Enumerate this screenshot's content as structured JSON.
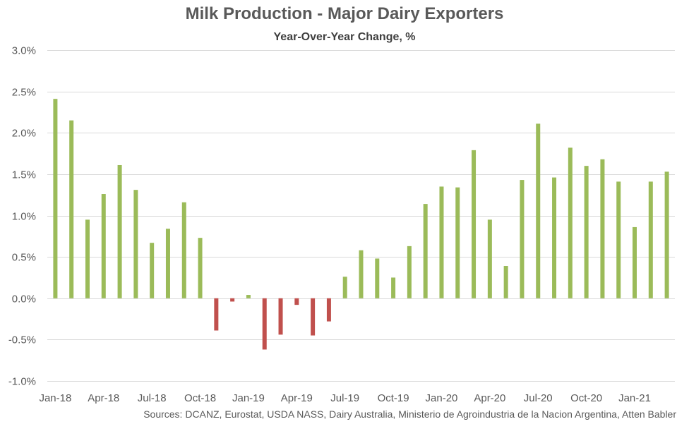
{
  "chart_data": {
    "type": "bar",
    "title": "Milk Production - Major Dairy Exporters",
    "subtitle": "Year-Over-Year Change, %",
    "source": "Sources: DCANZ, Eurostat, USDA NASS, Dairy Australia, Ministerio de Agroindustria de la Nacion Argentina, Atten Babler",
    "xlabel": "",
    "ylabel": "",
    "ylim": [
      -1.0,
      3.0
    ],
    "yticks": [
      -1.0,
      -0.5,
      0.0,
      0.5,
      1.0,
      1.5,
      2.0,
      2.5,
      3.0
    ],
    "ytick_labels": [
      "-1.0%",
      "-0.5%",
      "0.0%",
      "0.5%",
      "1.0%",
      "1.5%",
      "2.0%",
      "2.5%",
      "3.0%"
    ],
    "grid": true,
    "positive_color": "#9bbb59",
    "negative_color": "#c0504d",
    "categories": [
      "Jan-18",
      "Feb-18",
      "Mar-18",
      "Apr-18",
      "May-18",
      "Jun-18",
      "Jul-18",
      "Aug-18",
      "Sep-18",
      "Oct-18",
      "Nov-18",
      "Dec-18",
      "Jan-19",
      "Feb-19",
      "Mar-19",
      "Apr-19",
      "May-19",
      "Jun-19",
      "Jul-19",
      "Aug-19",
      "Sep-19",
      "Oct-19",
      "Nov-19",
      "Dec-19",
      "Jan-20",
      "Feb-20",
      "Mar-20",
      "Apr-20",
      "May-20",
      "Jun-20",
      "Jul-20",
      "Aug-20",
      "Sep-20",
      "Oct-20",
      "Nov-20",
      "Dec-20",
      "Jan-21",
      "Feb-21",
      "Mar-21"
    ],
    "x_tick_labels": [
      "Jan-18",
      "Apr-18",
      "Jul-18",
      "Oct-18",
      "Jan-19",
      "Apr-19",
      "Jul-19",
      "Oct-19",
      "Jan-20",
      "Apr-20",
      "Jul-20",
      "Oct-20",
      "Jan-21"
    ],
    "values": [
      2.41,
      2.15,
      0.95,
      1.26,
      1.61,
      1.31,
      0.67,
      0.84,
      1.16,
      0.73,
      -0.39,
      -0.04,
      0.04,
      -0.62,
      -0.44,
      -0.08,
      -0.45,
      -0.28,
      0.26,
      0.58,
      0.48,
      0.25,
      0.63,
      1.14,
      1.35,
      1.34,
      1.79,
      0.95,
      0.39,
      1.43,
      2.11,
      1.46,
      1.82,
      1.6,
      1.68,
      1.41,
      0.86,
      1.41,
      1.53
    ]
  }
}
